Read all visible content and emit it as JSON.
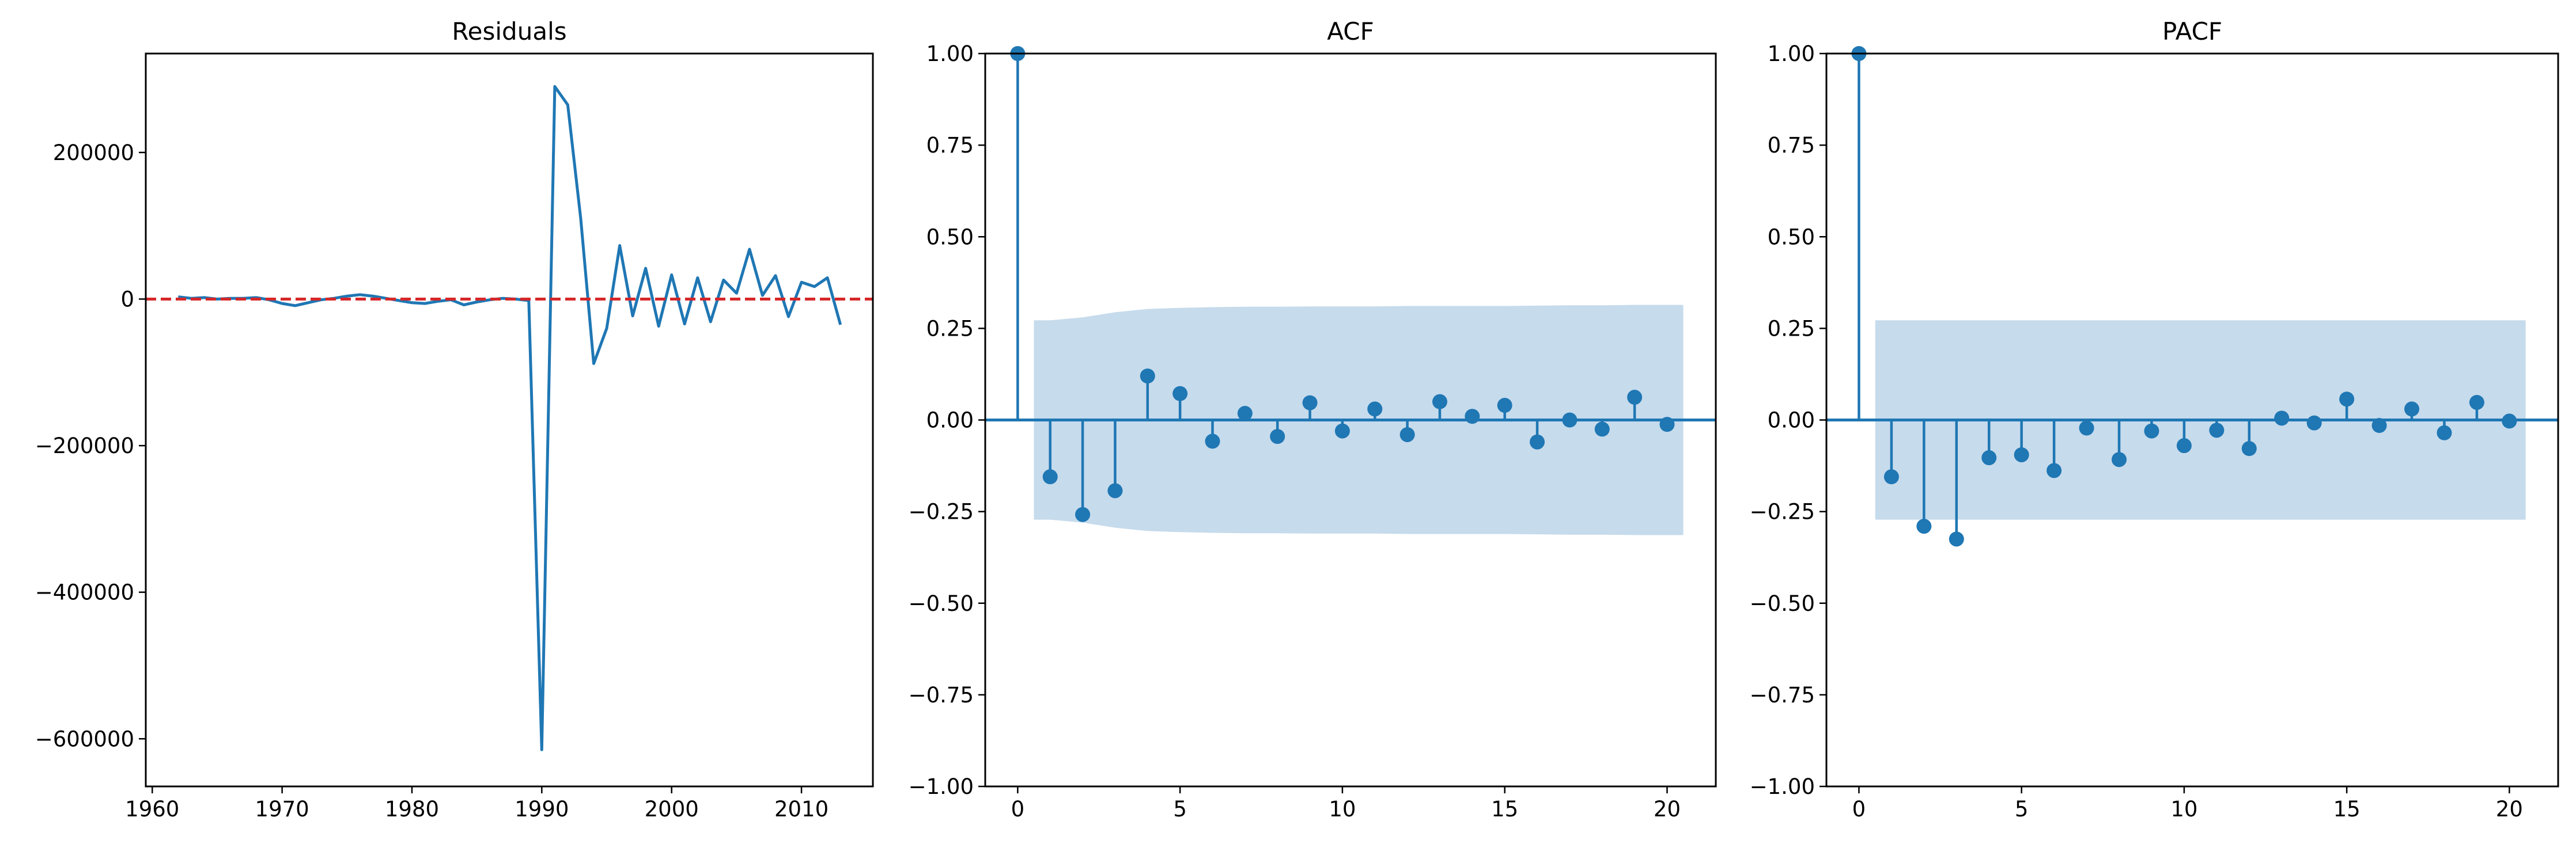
{
  "colors": {
    "series": "#1f77b4",
    "zero_line": "#d62728",
    "confidence_band": "#c6dbec",
    "background": "#ffffff",
    "axes": "#000000"
  },
  "chart_data": [
    {
      "type": "line",
      "title": "Residuals",
      "xlabel": "",
      "ylabel": "",
      "xlim": [
        1959.5,
        2015.5
      ],
      "ylim": [
        -665000,
        335000
      ],
      "xticks": [
        1960,
        1970,
        1980,
        1990,
        2000,
        2010
      ],
      "xtick_labels": [
        "1960",
        "1970",
        "1980",
        "1990",
        "2000",
        "2010"
      ],
      "yticks": [
        -600000,
        -400000,
        -200000,
        0,
        200000
      ],
      "ytick_labels": [
        "−600000",
        "−400000",
        "−200000",
        "0",
        "200000"
      ],
      "reference_line": {
        "y": 0,
        "style": "dashed",
        "color": "#d62728"
      },
      "grid": false,
      "series": [
        {
          "x": [
            1962,
            1963,
            1964,
            1965,
            1966,
            1967,
            1968,
            1969,
            1970,
            1971,
            1972,
            1973,
            1974,
            1975,
            1976,
            1977,
            1978,
            1979,
            1980,
            1981,
            1982,
            1983,
            1984,
            1985,
            1986,
            1987,
            1988,
            1989,
            1990,
            1991,
            1992,
            1993,
            1994,
            1995,
            1996,
            1997,
            1998,
            1999,
            2000,
            2001,
            2002,
            2003,
            2004,
            2005,
            2006,
            2007,
            2008,
            2009,
            2010,
            2011,
            2012,
            2013
          ],
          "y": [
            3000,
            1000,
            2000,
            0,
            1000,
            1000,
            2000,
            -1000,
            -6000,
            -9000,
            -5000,
            -1000,
            1000,
            4000,
            6000,
            4000,
            1000,
            -2000,
            -5000,
            -6000,
            -3000,
            -1000,
            -8000,
            -4000,
            -1000,
            1000,
            0,
            -2000,
            -615000,
            290000,
            265000,
            110000,
            -88000,
            -40000,
            73000,
            -23000,
            42000,
            -37000,
            33000,
            -34000,
            29000,
            -31000,
            26000,
            8000,
            68000,
            5000,
            32000,
            -24000,
            23000,
            17000,
            29000,
            -35000
          ]
        }
      ]
    },
    {
      "type": "stem",
      "title": "ACF",
      "xlabel": "",
      "ylabel": "",
      "xlim": [
        -1,
        21.5
      ],
      "ylim": [
        -1.0,
        1.0
      ],
      "xticks": [
        0,
        5,
        10,
        15,
        20
      ],
      "xtick_labels": [
        "0",
        "5",
        "10",
        "15",
        "20"
      ],
      "yticks": [
        -1.0,
        -0.75,
        -0.5,
        -0.25,
        0.0,
        0.25,
        0.5,
        0.75,
        1.0
      ],
      "ytick_labels": [
        "−1.00",
        "−0.75",
        "−0.50",
        "−0.25",
        "0.00",
        "0.25",
        "0.50",
        "0.75",
        "1.00"
      ],
      "grid": false,
      "lags": [
        0,
        1,
        2,
        3,
        4,
        5,
        6,
        7,
        8,
        9,
        10,
        11,
        12,
        13,
        14,
        15,
        16,
        17,
        18,
        19,
        20
      ],
      "values": [
        1.0,
        -0.155,
        -0.258,
        -0.193,
        0.12,
        0.072,
        -0.058,
        0.018,
        -0.045,
        0.047,
        -0.03,
        0.03,
        -0.04,
        0.05,
        0.01,
        0.04,
        -0.06,
        0.0,
        -0.025,
        0.062,
        -0.012
      ],
      "confidence_band": {
        "lags": [
          0.5,
          1,
          2,
          3,
          4,
          5,
          6,
          7,
          8,
          9,
          10,
          11,
          12,
          13,
          14,
          15,
          16,
          17,
          18,
          19,
          20,
          20.5
        ],
        "upper": [
          0.272,
          0.272,
          0.28,
          0.294,
          0.303,
          0.306,
          0.308,
          0.309,
          0.309,
          0.31,
          0.31,
          0.31,
          0.311,
          0.311,
          0.311,
          0.311,
          0.312,
          0.313,
          0.313,
          0.314,
          0.314,
          0.314
        ]
      }
    },
    {
      "type": "stem",
      "title": "PACF",
      "xlabel": "",
      "ylabel": "",
      "xlim": [
        -1,
        21.5
      ],
      "ylim": [
        -1.0,
        1.0
      ],
      "xticks": [
        0,
        5,
        10,
        15,
        20
      ],
      "xtick_labels": [
        "0",
        "5",
        "10",
        "15",
        "20"
      ],
      "yticks": [
        -1.0,
        -0.75,
        -0.5,
        -0.25,
        0.0,
        0.25,
        0.5,
        0.75,
        1.0
      ],
      "ytick_labels": [
        "−1.00",
        "−0.75",
        "−0.50",
        "−0.25",
        "0.00",
        "0.25",
        "0.50",
        "0.75",
        "1.00"
      ],
      "grid": false,
      "lags": [
        0,
        1,
        2,
        3,
        4,
        5,
        6,
        7,
        8,
        9,
        10,
        11,
        12,
        13,
        14,
        15,
        16,
        17,
        18,
        19,
        20
      ],
      "values": [
        1.0,
        -0.155,
        -0.29,
        -0.325,
        -0.103,
        -0.095,
        -0.138,
        -0.022,
        -0.108,
        -0.03,
        -0.07,
        -0.028,
        -0.078,
        0.005,
        -0.008,
        0.057,
        -0.015,
        0.03,
        -0.035,
        0.048,
        -0.003
      ],
      "confidence_band": {
        "lags": [
          0.5,
          20.5
        ],
        "upper": [
          0.272,
          0.272
        ]
      }
    }
  ]
}
